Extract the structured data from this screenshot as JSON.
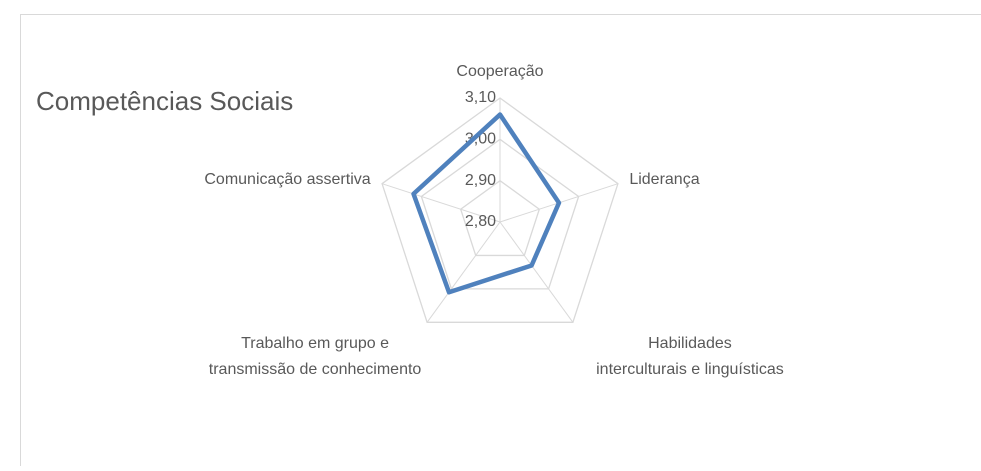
{
  "chart_data": {
    "type": "radar",
    "title": "Competências Sociais",
    "categories": [
      "Cooperação",
      "Liderança",
      "Habilidades interculturais e linguísticas",
      "Trabalho em grupo e transmissão de conhecimento",
      "Comunicação assertiva"
    ],
    "series": [
      {
        "name": "Competências Sociais",
        "color": "#4f81bd",
        "values": [
          3.06,
          2.95,
          2.93,
          3.01,
          3.02
        ]
      }
    ],
    "ylim": [
      2.8,
      3.1
    ],
    "yticks": [
      {
        "value": 2.8,
        "label": "2,80"
      },
      {
        "value": 2.9,
        "label": "2,90"
      },
      {
        "value": 3.0,
        "label": "3,00"
      },
      {
        "value": 3.1,
        "label": "3,10"
      }
    ],
    "grid": true
  }
}
